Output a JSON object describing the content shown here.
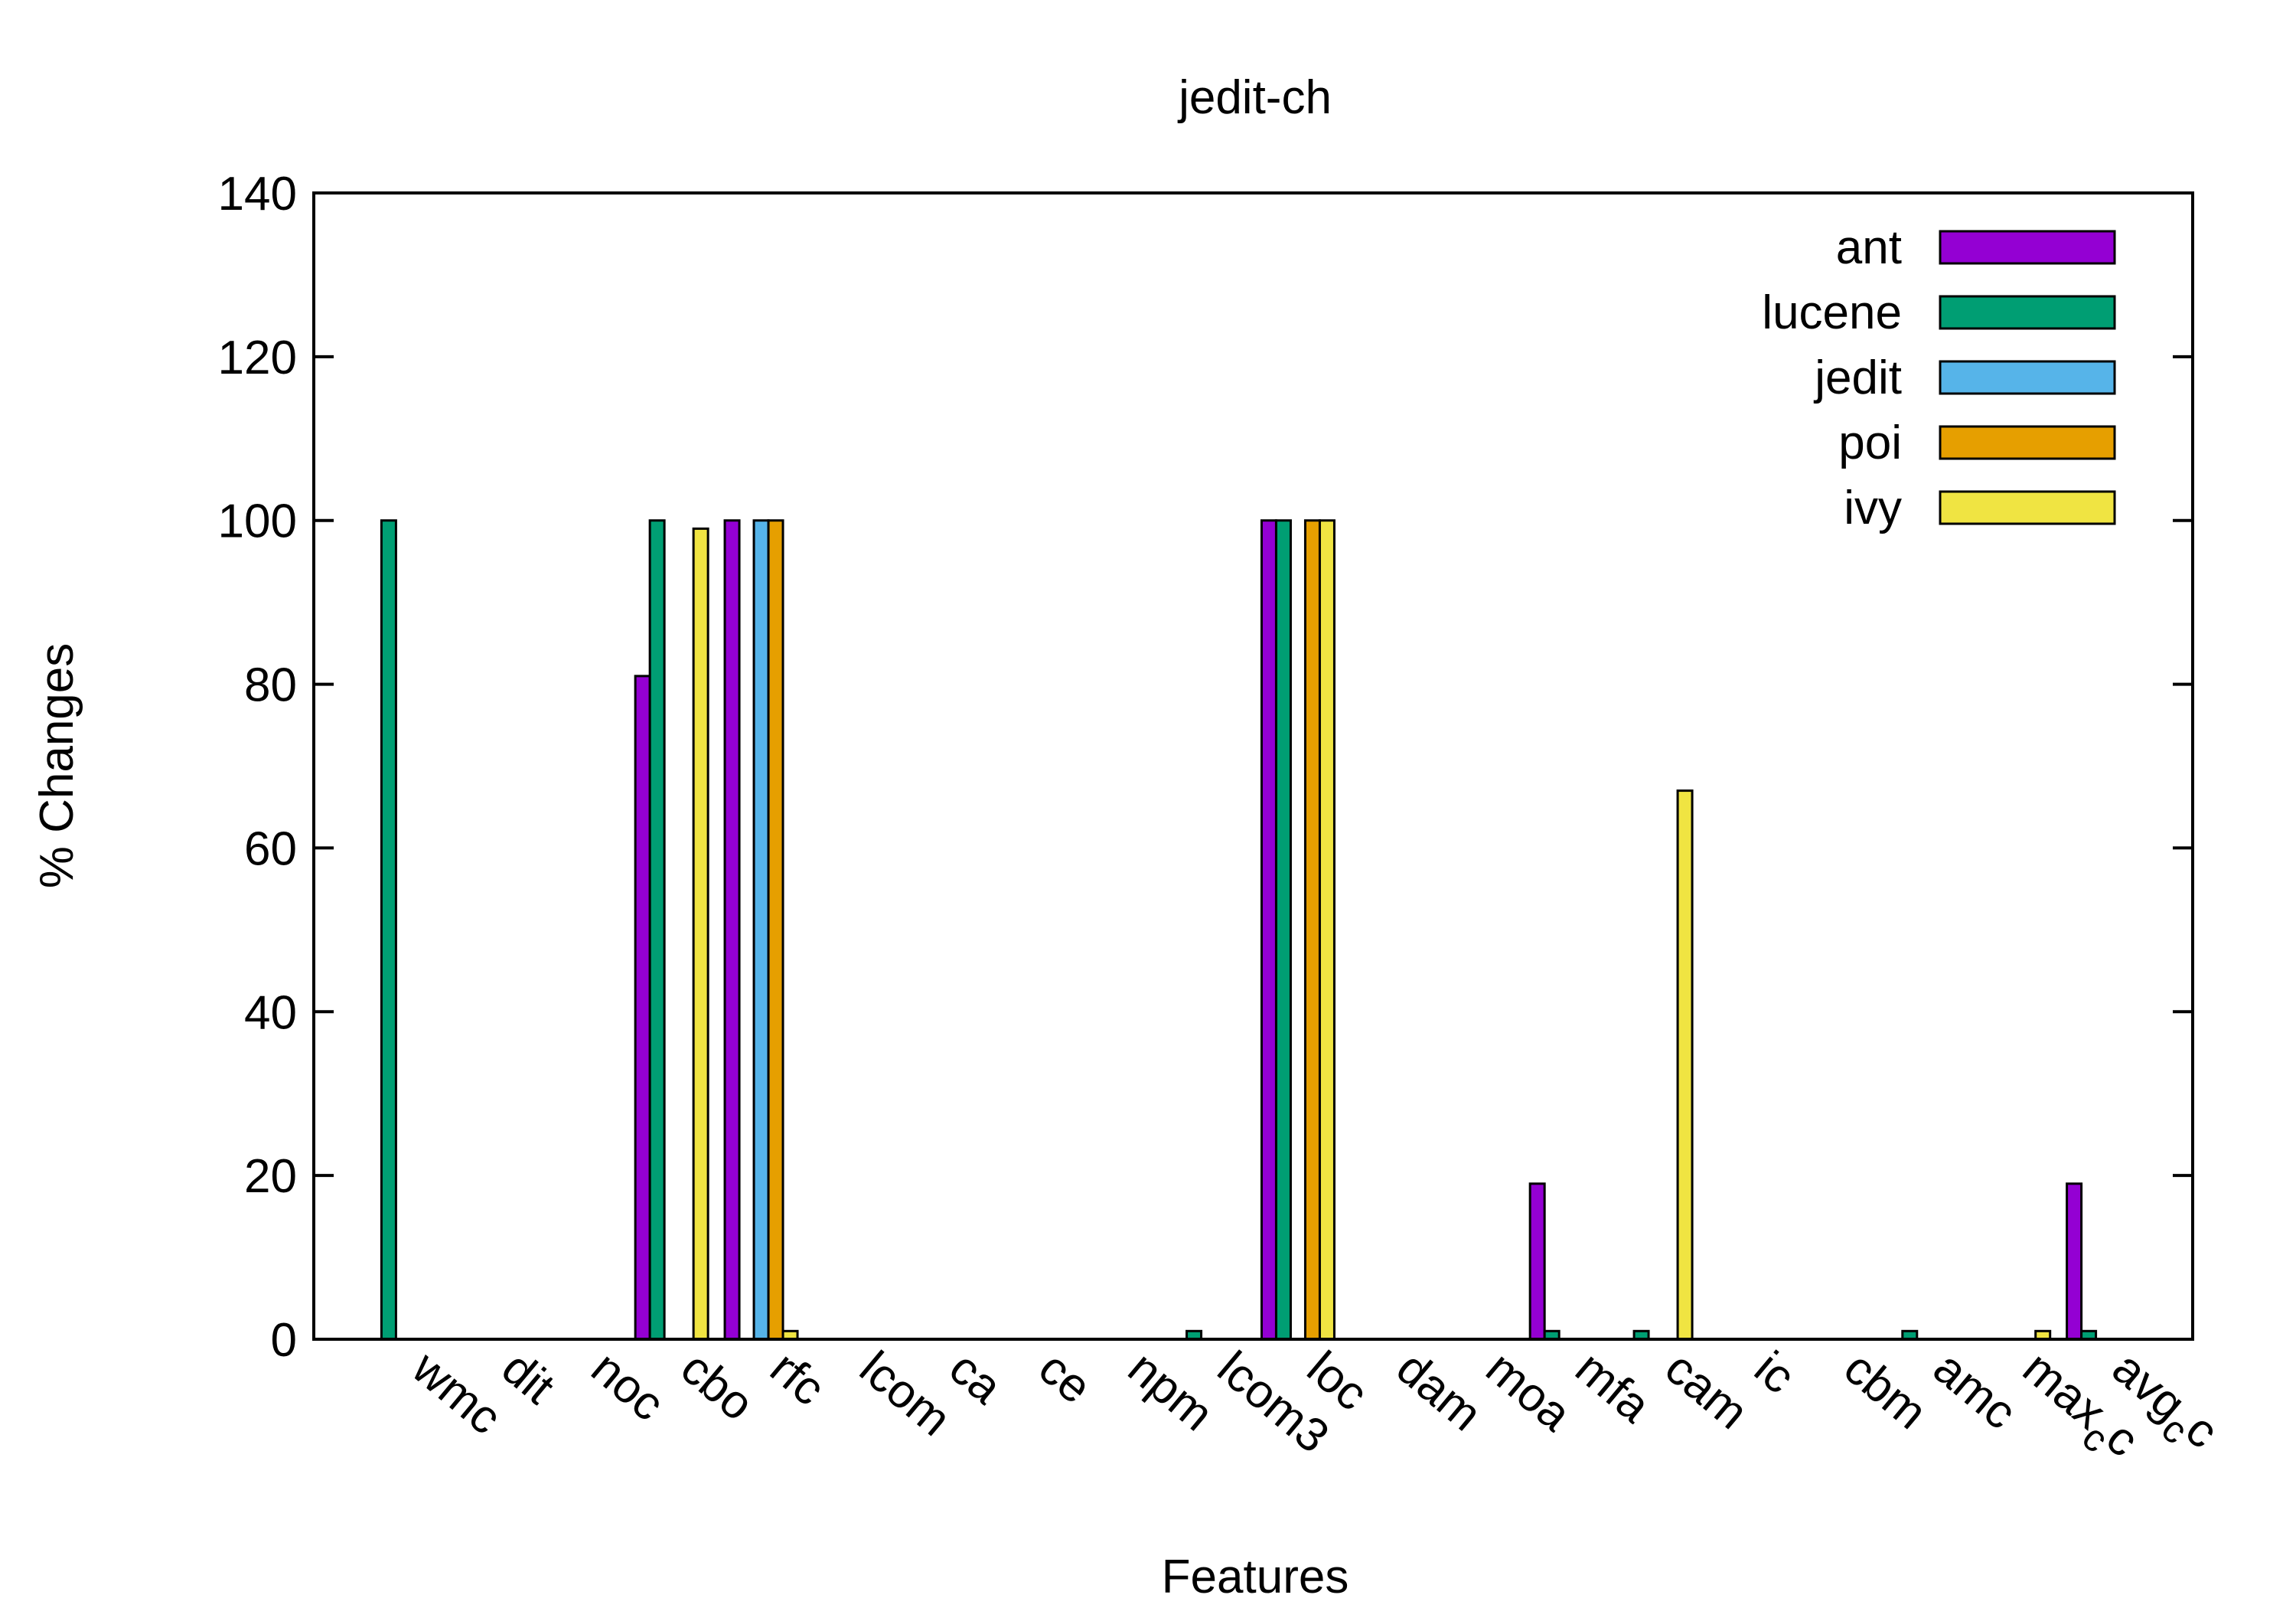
{
  "chart_data": {
    "type": "bar",
    "title": "jedit-ch",
    "xlabel": "Features",
    "ylabel": "% Changes",
    "ylim": [
      0,
      140
    ],
    "yticks": [
      0,
      20,
      40,
      60,
      80,
      100,
      120,
      140
    ],
    "grid": false,
    "legend_position": "top-right",
    "categories": [
      "wmc",
      "dit",
      "noc",
      "cbo",
      "rfc",
      "lcom",
      "ca",
      "ce",
      "npm",
      "lcom3",
      "loc",
      "dam",
      "moa",
      "mfa",
      "cam",
      "ic",
      "cbm",
      "amc",
      "max_cc",
      "avg_cc"
    ],
    "category_display": [
      {
        "main": "wmc"
      },
      {
        "main": "dit"
      },
      {
        "main": "noc"
      },
      {
        "main": "cbo"
      },
      {
        "main": "rfc"
      },
      {
        "main": "lcom"
      },
      {
        "main": "ca"
      },
      {
        "main": "ce"
      },
      {
        "main": "npm"
      },
      {
        "main": "lcom3"
      },
      {
        "main": "loc"
      },
      {
        "main": "dam"
      },
      {
        "main": "moa"
      },
      {
        "main": "mfa"
      },
      {
        "main": "cam"
      },
      {
        "main": "ic"
      },
      {
        "main": "cbm"
      },
      {
        "main": "amc"
      },
      {
        "main": "max",
        "sub": "c",
        "tail": "c"
      },
      {
        "main": "avg",
        "sub": "c",
        "tail": "c"
      }
    ],
    "series": [
      {
        "name": "ant",
        "color": "#9400d3",
        "values": [
          0,
          0,
          0,
          81,
          100,
          0,
          0,
          0,
          0,
          0,
          100,
          0,
          0,
          19,
          0,
          0,
          0,
          0,
          0,
          19
        ]
      },
      {
        "name": "lucene",
        "color": "#009e73",
        "values": [
          100,
          0,
          0,
          100,
          0,
          0,
          0,
          0,
          0,
          1,
          100,
          0,
          0,
          1,
          1,
          0,
          0,
          1,
          0,
          1
        ]
      },
      {
        "name": "jedit",
        "color": "#56b4e9",
        "values": [
          0,
          0,
          0,
          0,
          100,
          0,
          0,
          0,
          0,
          0,
          0,
          0,
          0,
          0,
          0,
          0,
          0,
          0,
          0,
          0
        ]
      },
      {
        "name": "poi",
        "color": "#e69f00",
        "values": [
          0,
          0,
          0,
          0,
          100,
          0,
          0,
          0,
          0,
          0,
          100,
          0,
          0,
          0,
          0,
          0,
          0,
          0,
          0,
          0
        ]
      },
      {
        "name": "ivy",
        "color": "#f0e442",
        "values": [
          0,
          0,
          0,
          99,
          1,
          0,
          0,
          0,
          0,
          0,
          100,
          0,
          0,
          0,
          67,
          0,
          0,
          0,
          1,
          0
        ]
      }
    ]
  }
}
